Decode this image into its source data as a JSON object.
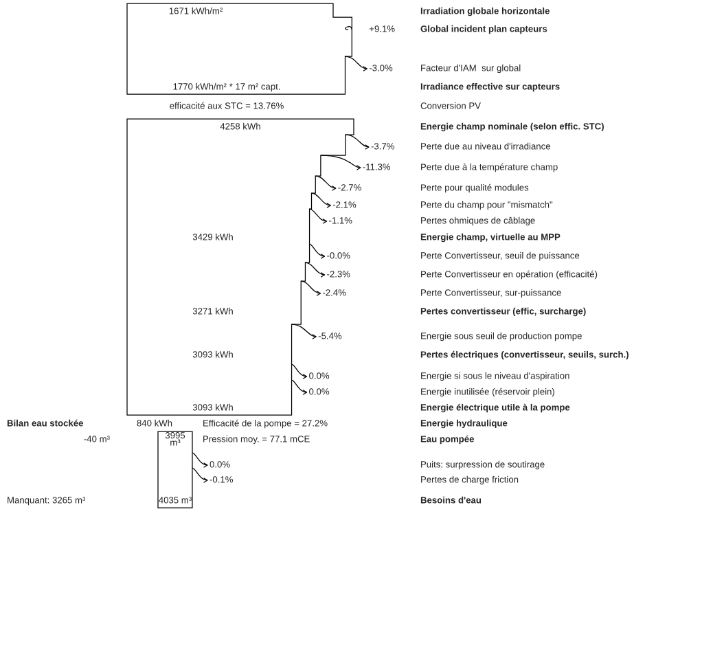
{
  "chart_data": {
    "type": "other",
    "categories": [
      "Irradiation globale horizontale",
      "Global incident plan capteurs",
      "Facteur d'IAM  sur global",
      "Irradiance effective sur capteurs",
      "Conversion PV",
      "Energie champ nominale (selon effic. STC)",
      "Perte due au niveau d'irradiance",
      "Perte due à la température champ",
      "Perte pour qualité modules",
      "Perte du champ pour \"mismatch\"",
      "Pertes ohmiques de câblage",
      "Energie champ, virtuelle au MPP",
      "Perte Convertisseur, seuil de puissance",
      "Perte Convertisseur en opération (efficacité)",
      "Perte Convertisseur, sur-puissance",
      "Pertes convertisseur (effic, surcharge)",
      "Energie sous seuil de production pompe",
      "Pertes électriques (convertisseur, seuils, surch.)",
      "Energie si sous le niveau d'aspiration",
      "Energie inutilisée (réservoir plein)",
      "Energie électrique utile à la pompe",
      "Energie hydraulique",
      "Eau pompée",
      "Puits: surpression de soutirage",
      "Pertes de charge friction",
      "Besoins d'eau"
    ],
    "values": [
      null,
      9.1,
      -3.0,
      null,
      null,
      null,
      -3.7,
      -11.3,
      -2.7,
      -2.1,
      -1.1,
      null,
      -0.0,
      -2.3,
      -2.4,
      null,
      -5.4,
      null,
      0.0,
      0.0,
      null,
      null,
      null,
      0.0,
      -0.1,
      null
    ],
    "value_labels": [
      null,
      "+9.1%",
      "-3.0%",
      null,
      null,
      null,
      "-3.7%",
      "-11.3%",
      "-2.7%",
      "-2.1%",
      "-1.1%",
      null,
      "-0.0%",
      "-2.3%",
      "-2.4%",
      null,
      "-5.4%",
      null,
      "0.0%",
      "0.0%",
      null,
      null,
      null,
      "0.0%",
      "-0.1%",
      null
    ],
    "annotations": [
      "1671 kWh/m²",
      "1770 kWh/m² * 17 m² capt.",
      "efficacité aux STC = 13.76%",
      "4258 kWh",
      "3429 kWh",
      "3271 kWh",
      "3093 kWh",
      "3093 kWh",
      "Bilan eau stockée",
      "840 kWh",
      "Efficacité de la pompe = 27.2%",
      "-40 m³",
      "3995\nm³",
      "Pression moy. = 77.1 mCE",
      "Manquant: 3265 m³",
      "4035 m³"
    ]
  }
}
